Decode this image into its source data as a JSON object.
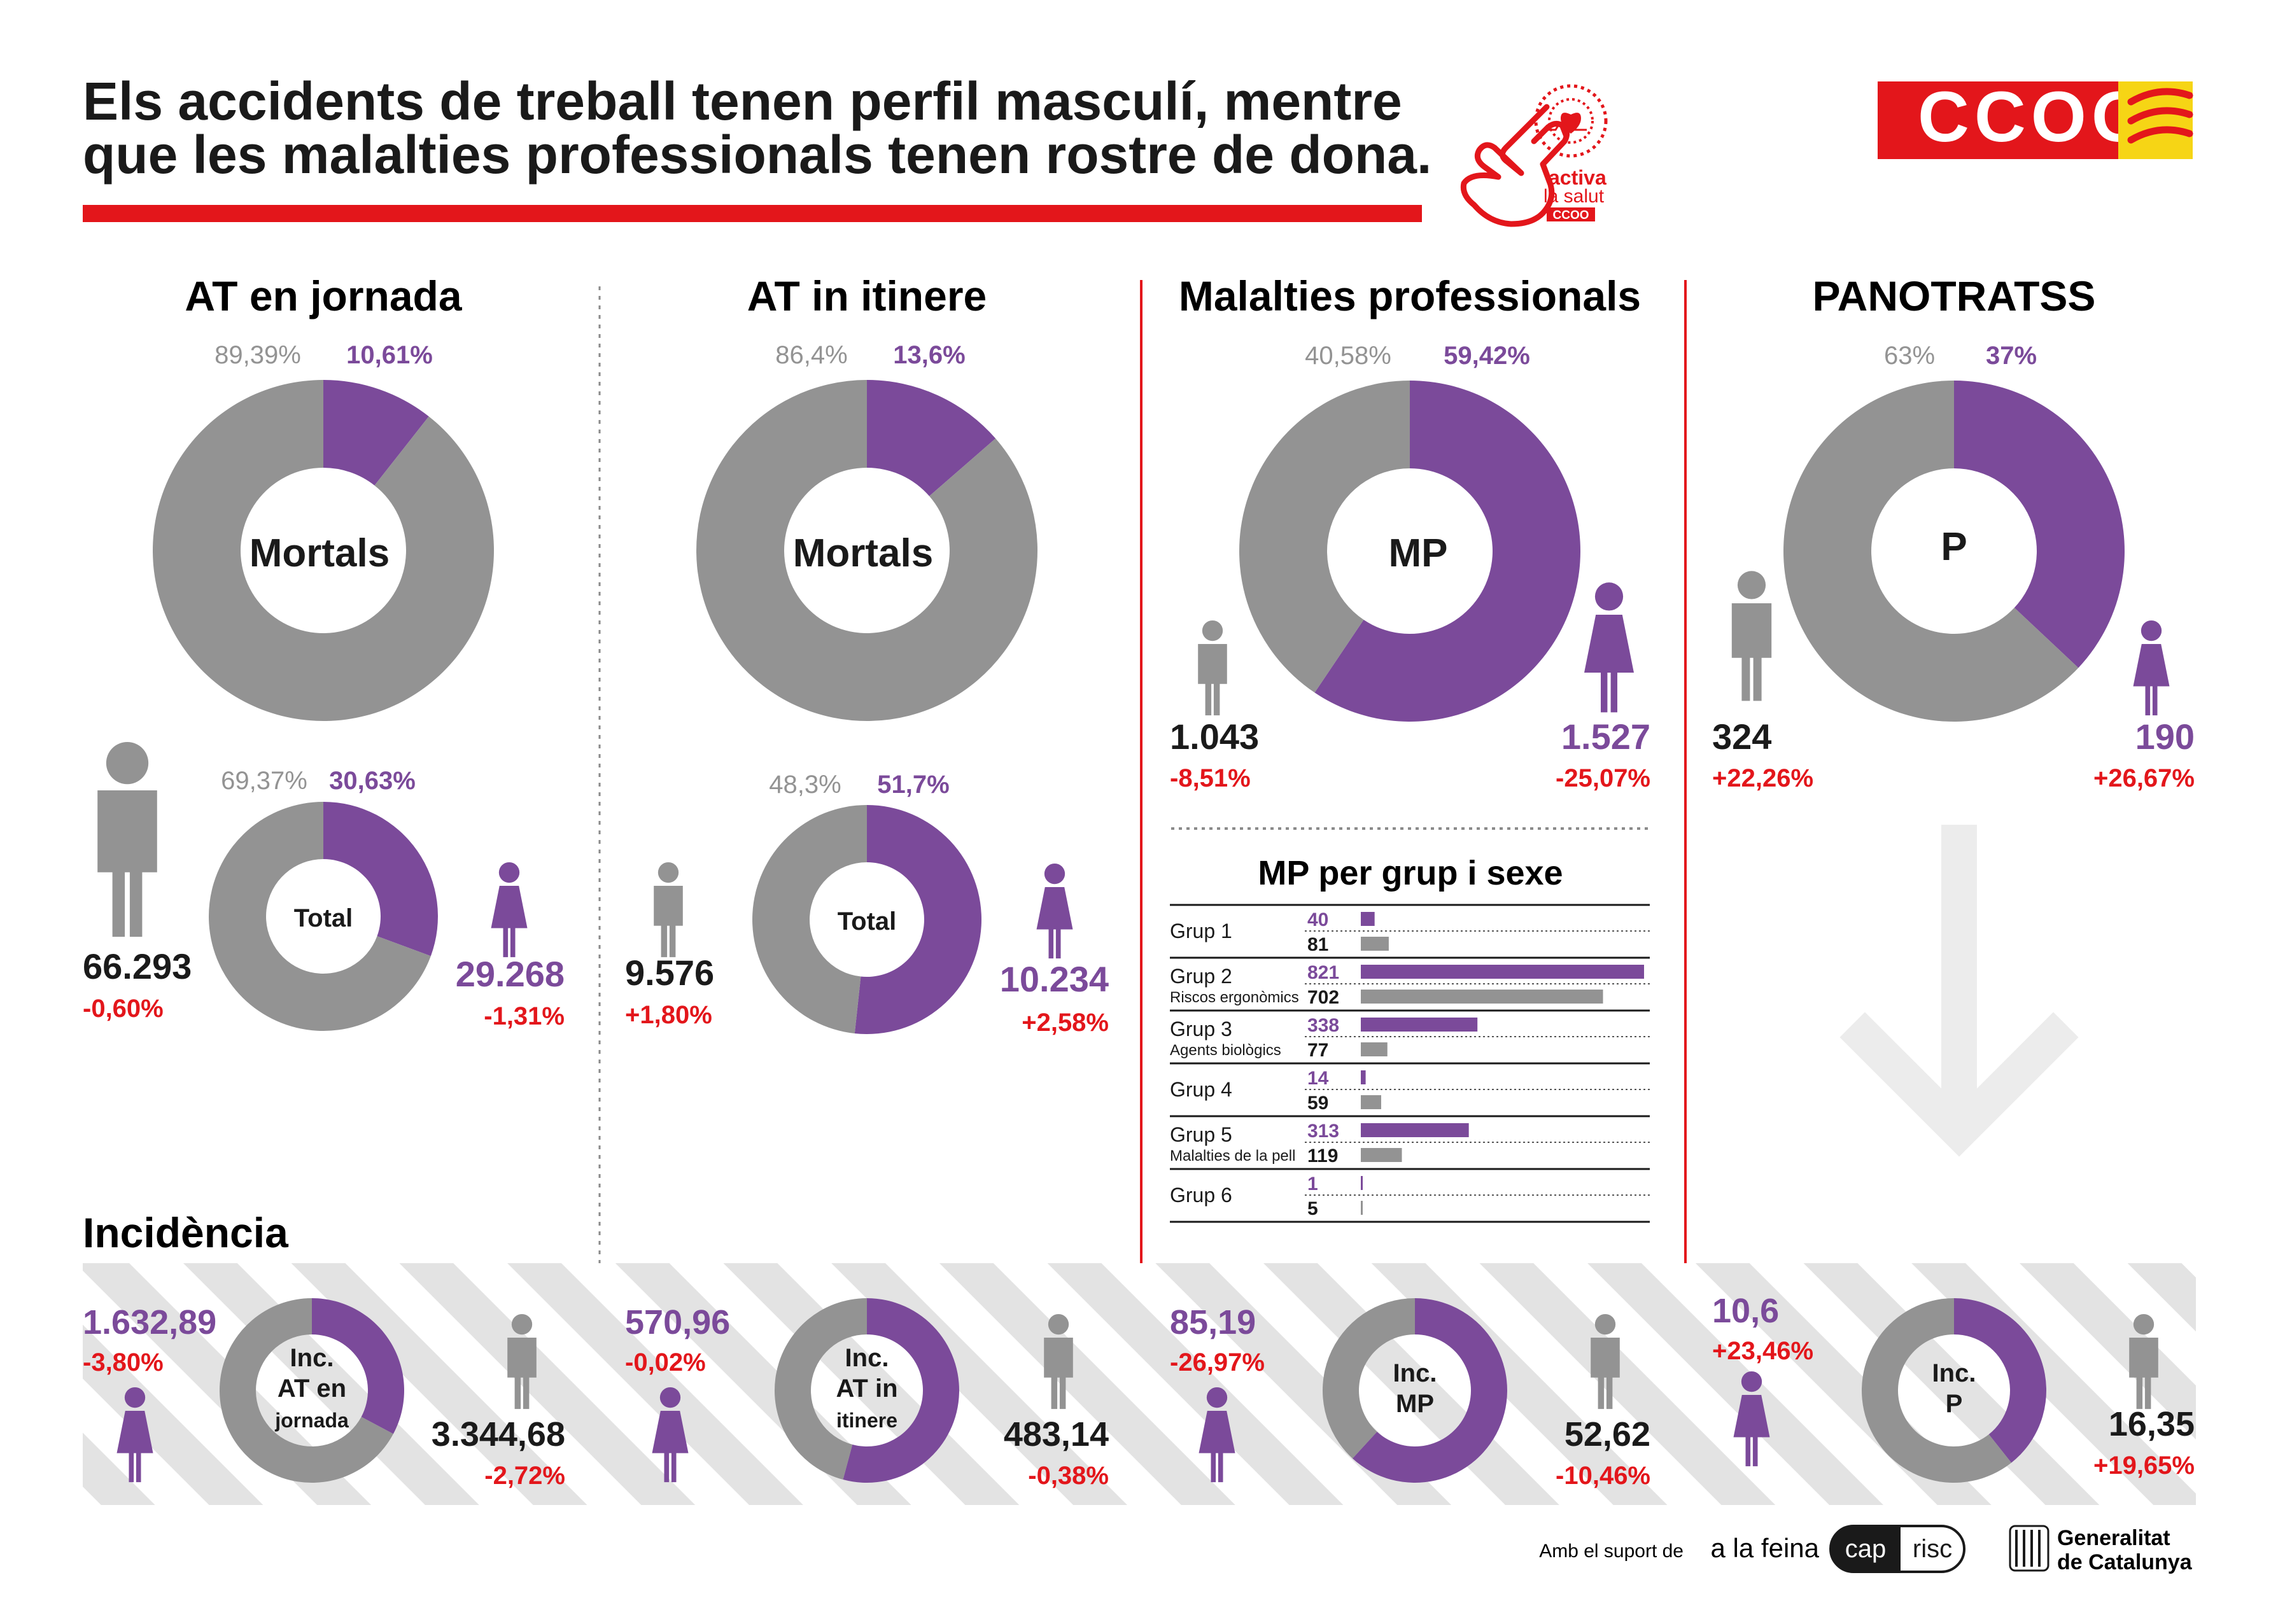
{
  "header": {
    "title_line1": "Els accidents de treball tenen perfil masculí, mentre",
    "title_line2": "que les malalties professionals tenen rostre de dona.",
    "activa_line1": "activa",
    "activa_line2": "la salut",
    "activa_brand": "CCOO",
    "logo_text": "CCOO"
  },
  "colors": {
    "man": "#939393",
    "woman": "#7b4a9a",
    "accent": "#e3161b",
    "text": "#1a1a1a",
    "stripe": "#e3e3e3"
  },
  "chart_data": [
    {
      "type": "pie",
      "title": "AT en jornada",
      "center": "Mortals",
      "categories": [
        "Homes",
        "Dones"
      ],
      "values": [
        89.39,
        10.61
      ],
      "labels": [
        "89,39%",
        "10,61%"
      ]
    },
    {
      "type": "pie",
      "center": "Total",
      "categories": [
        "Homes",
        "Dones"
      ],
      "values": [
        69.37,
        30.63
      ],
      "labels": [
        "69,37%",
        "30,63%"
      ],
      "man": {
        "value": "66.293",
        "change": "-0,60%"
      },
      "woman": {
        "value": "29.268",
        "change": "-1,31%"
      }
    },
    {
      "type": "pie",
      "title": "AT in itinere",
      "center": "Mortals",
      "categories": [
        "Homes",
        "Dones"
      ],
      "values": [
        86.4,
        13.6
      ],
      "labels": [
        "86,4%",
        "13,6%"
      ]
    },
    {
      "type": "pie",
      "center": "Total",
      "categories": [
        "Homes",
        "Dones"
      ],
      "values": [
        48.3,
        51.7
      ],
      "labels": [
        "48,3%",
        "51,7%"
      ],
      "man": {
        "value": "9.576",
        "change": "+1,80%"
      },
      "woman": {
        "value": "10.234",
        "change": "+2,58%"
      }
    },
    {
      "type": "pie",
      "title": "Malalties professionals",
      "center": "MP",
      "categories": [
        "Homes",
        "Dones"
      ],
      "values": [
        40.58,
        59.42
      ],
      "labels": [
        "40,58%",
        "59,42%"
      ],
      "man": {
        "value": "1.043",
        "change": "-8,51%"
      },
      "woman": {
        "value": "1.527",
        "change": "-25,07%"
      }
    },
    {
      "type": "pie",
      "title": "PANOTRATSS",
      "center": "P",
      "categories": [
        "Homes",
        "Dones"
      ],
      "values": [
        63,
        37
      ],
      "labels": [
        "63%",
        "37%"
      ],
      "man": {
        "value": "324",
        "change": "+22,26%"
      },
      "woman": {
        "value": "190",
        "change": "+26,67%"
      }
    },
    {
      "type": "bar",
      "title": "MP per grup i sexe",
      "xlim": [
        0,
        821
      ],
      "groups": [
        {
          "name": "Grup 1",
          "sub": "",
          "woman": 40,
          "man": 81
        },
        {
          "name": "Grup 2",
          "sub": "Riscos ergonòmics",
          "woman": 821,
          "man": 702
        },
        {
          "name": "Grup 3",
          "sub": "Agents biològics",
          "woman": 338,
          "man": 77
        },
        {
          "name": "Grup 4",
          "sub": "",
          "woman": 14,
          "man": 59
        },
        {
          "name": "Grup 5",
          "sub": "Malalties de la pell",
          "woman": 313,
          "man": 119
        },
        {
          "name": "Grup 6",
          "sub": "",
          "woman": 1,
          "man": 5
        }
      ]
    },
    {
      "type": "pie",
      "title": "Incidència",
      "center_lines": [
        "Inc.",
        "AT en",
        "jornada"
      ],
      "categories": [
        "Dones",
        "Homes"
      ],
      "values": [
        1632.89,
        3344.68
      ],
      "woman": {
        "value": "1.632,89",
        "change": "-3,80%"
      },
      "man": {
        "value": "3.344,68",
        "change": "-2,72%"
      }
    },
    {
      "type": "pie",
      "center_lines": [
        "Inc.",
        "AT in",
        "itinere"
      ],
      "categories": [
        "Dones",
        "Homes"
      ],
      "values": [
        570.96,
        483.14
      ],
      "woman": {
        "value": "570,96",
        "change": "-0,02%"
      },
      "man": {
        "value": "483,14",
        "change": "-0,38%"
      }
    },
    {
      "type": "pie",
      "center_lines": [
        "Inc.",
        "MP"
      ],
      "categories": [
        "Dones",
        "Homes"
      ],
      "values": [
        85.19,
        52.62
      ],
      "woman": {
        "value": "85,19",
        "change": "-26,97%"
      },
      "man": {
        "value": "52,62",
        "change": "-10,46%"
      }
    },
    {
      "type": "pie",
      "center_lines": [
        "Inc.",
        "P"
      ],
      "categories": [
        "Dones",
        "Homes"
      ],
      "values": [
        10.6,
        16.35
      ],
      "woman": {
        "value": "10,6",
        "change": "+23,46%"
      },
      "man": {
        "value": "16,35",
        "change": "+19,65%"
      }
    }
  ],
  "footer": {
    "support_label": "Amb el suport de",
    "alafeina": "a la feina",
    "cap": "cap",
    "risc": "risc",
    "gencat_line1": "Generalitat",
    "gencat_line2": "de Catalunya"
  }
}
